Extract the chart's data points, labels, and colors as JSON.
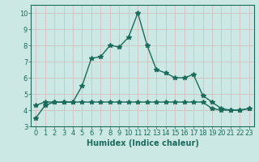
{
  "line1_x": [
    0,
    1,
    2,
    3,
    4,
    5,
    6,
    7,
    8,
    9,
    10,
    11,
    12,
    13,
    14,
    15,
    16,
    17,
    18,
    19,
    20,
    21,
    22,
    23
  ],
  "line1_y": [
    3.5,
    4.3,
    4.5,
    4.5,
    4.5,
    5.5,
    7.2,
    7.3,
    8.0,
    7.9,
    8.5,
    10.0,
    8.0,
    6.5,
    6.3,
    6.0,
    6.0,
    6.2,
    4.9,
    4.5,
    4.1,
    4.0,
    4.0,
    4.1
  ],
  "line2_x": [
    0,
    1,
    2,
    3,
    4,
    5,
    6,
    7,
    8,
    9,
    10,
    11,
    12,
    13,
    14,
    15,
    16,
    17,
    18,
    19,
    20,
    21,
    22,
    23
  ],
  "line2_y": [
    4.3,
    4.5,
    4.5,
    4.5,
    4.5,
    4.5,
    4.5,
    4.5,
    4.5,
    4.5,
    4.5,
    4.5,
    4.5,
    4.5,
    4.5,
    4.5,
    4.5,
    4.5,
    4.5,
    4.1,
    4.0,
    4.0,
    4.0,
    4.1
  ],
  "line_color": "#1a6b5a",
  "bg_color": "#cce8e4",
  "grid_color": "#b0d8d2",
  "xlabel": "Humidex (Indice chaleur)",
  "ylim": [
    3,
    10.5
  ],
  "xlim": [
    -0.5,
    23.5
  ],
  "yticks": [
    3,
    4,
    5,
    6,
    7,
    8,
    9,
    10
  ],
  "xticks": [
    0,
    1,
    2,
    3,
    4,
    5,
    6,
    7,
    8,
    9,
    10,
    11,
    12,
    13,
    14,
    15,
    16,
    17,
    18,
    19,
    20,
    21,
    22,
    23
  ],
  "marker": "*",
  "markersize": 4,
  "linewidth": 1.0,
  "font_color": "#1a6b5a",
  "tick_fontsize": 6,
  "xlabel_fontsize": 7
}
